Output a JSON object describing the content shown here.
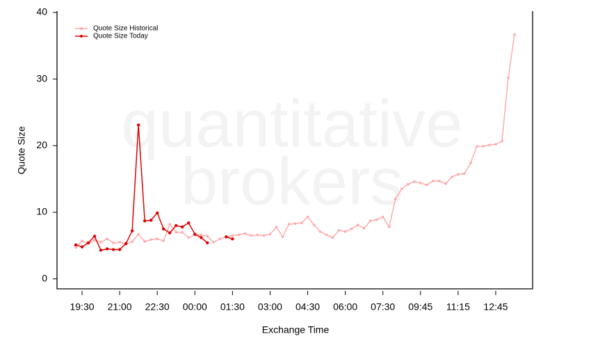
{
  "chart_data": {
    "type": "line",
    "watermark": [
      "quantitative",
      "brokers"
    ],
    "ylabel": "Quote Size",
    "xlabel": "Exchange Time",
    "legend": "top-left",
    "categories": [
      null,
      "19:30",
      null,
      null,
      null,
      null,
      null,
      "21:00",
      null,
      null,
      null,
      null,
      null,
      "22:30",
      null,
      null,
      null,
      null,
      null,
      "00:00",
      null,
      null,
      null,
      null,
      null,
      "01:30",
      null,
      null,
      null,
      null,
      null,
      "03:00",
      null,
      null,
      null,
      null,
      null,
      "04:30",
      null,
      null,
      null,
      null,
      null,
      "06:00",
      null,
      null,
      null,
      null,
      null,
      "07:30",
      null,
      null,
      null,
      null,
      null,
      "09:45",
      null,
      null,
      null,
      null,
      null,
      "11:15",
      null,
      null,
      null,
      null,
      null,
      "12:45",
      null,
      null,
      null
    ],
    "series": [
      {
        "name": "Quote Size Historical",
        "color": "#ffaaaa",
        "values": [
          4.7,
          5.7,
          5.3,
          5.8,
          5.5,
          6.0,
          5.4,
          5.5,
          5.2,
          5.6,
          6.7,
          5.6,
          5.9,
          6.0,
          5.7,
          8.2,
          7.0,
          7.0,
          6.2,
          6.6,
          6.6,
          6.4,
          5.5,
          6.0,
          6.3,
          6.5,
          6.6,
          6.8,
          6.5,
          6.6,
          6.5,
          6.7,
          7.8,
          6.3,
          8.2,
          8.3,
          8.4,
          9.3,
          8.1,
          7.1,
          6.6,
          6.2,
          7.3,
          7.1,
          7.5,
          8.1,
          7.6,
          8.7,
          8.9,
          9.3,
          7.8,
          12.0,
          13.5,
          14.2,
          14.6,
          14.4,
          14.1,
          14.7,
          14.7,
          14.3,
          15.3,
          15.7,
          15.8,
          17.4,
          19.9,
          19.9,
          20.1,
          20.2,
          20.7,
          30.2,
          36.7
        ]
      },
      {
        "name": "Quote Size Today",
        "color": "#e00000",
        "values": [
          5.1,
          4.8,
          5.4,
          6.4,
          4.3,
          4.5,
          4.4,
          4.4,
          5.3,
          7.2,
          23.1,
          8.7,
          8.8,
          9.9,
          7.5,
          6.9,
          8.0,
          7.8,
          8.4,
          6.7,
          6.2,
          5.4,
          null,
          null,
          6.3,
          6.0,
          null,
          null,
          null,
          null,
          null,
          null,
          null,
          null,
          null,
          null,
          null,
          null,
          null,
          null,
          null,
          null,
          null,
          null,
          null,
          null,
          null,
          null,
          null,
          null,
          null,
          null,
          null,
          null,
          null,
          null,
          null,
          null,
          null,
          null,
          null,
          null,
          null,
          null,
          null,
          null,
          null,
          null,
          null,
          null,
          null
        ]
      }
    ],
    "ylim": [
      -1.5,
      40.2
    ],
    "yticks": [
      0,
      10,
      20,
      30,
      40
    ]
  }
}
